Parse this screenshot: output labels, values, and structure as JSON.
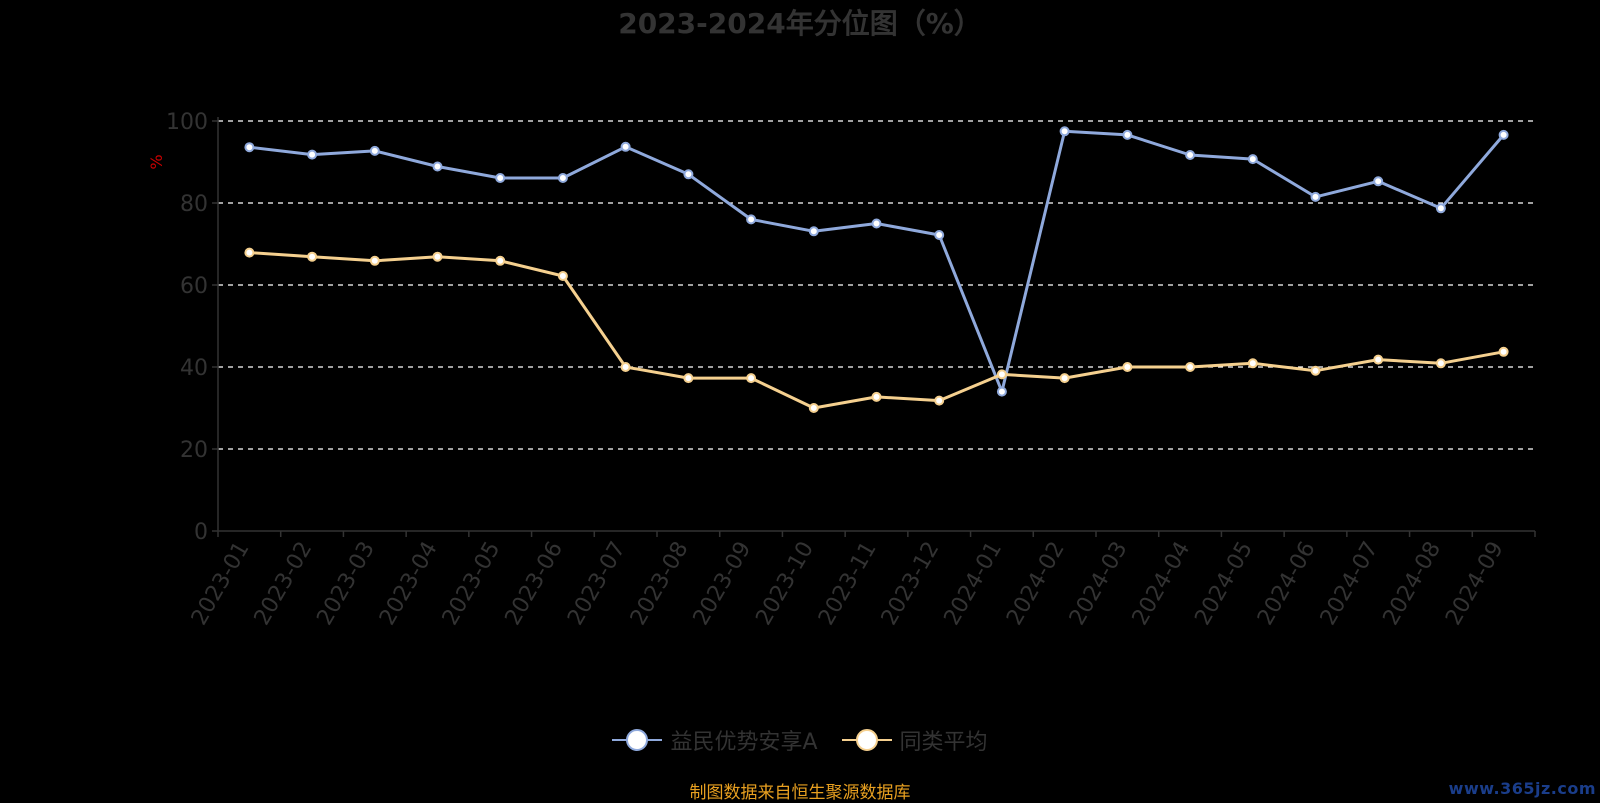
{
  "chart_data": {
    "type": "line",
    "title": "2023-2024年分位图（%）",
    "ylabel": "%",
    "ylim": [
      0,
      100
    ],
    "yticks": [
      0,
      20,
      40,
      60,
      80,
      100
    ],
    "grid": true,
    "legend_position": "bottom",
    "categories": [
      "2023-01",
      "2023-02",
      "2023-03",
      "2023-04",
      "2023-05",
      "2023-06",
      "2023-07",
      "2023-08",
      "2023-09",
      "2023-10",
      "2023-11",
      "2023-12",
      "2024-01",
      "2024-02",
      "2024-03",
      "2024-04",
      "2024-05",
      "2024-06",
      "2024-07",
      "2024-08",
      "2024-09"
    ],
    "series": [
      {
        "name": "益民优势安享A",
        "color": "#8fa9dc",
        "values": [
          93.6,
          91.8,
          92.7,
          88.9,
          86.1,
          86.1,
          93.7,
          87.0,
          76.0,
          73.1,
          75.0,
          72.2,
          34.0,
          97.5,
          96.6,
          91.7,
          90.7,
          81.5,
          85.3,
          78.7,
          96.6
        ]
      },
      {
        "name": "同类平均",
        "color": "#f5d08f",
        "values": [
          67.9,
          66.9,
          65.9,
          66.9,
          65.9,
          62.2,
          40.0,
          37.3,
          37.3,
          30.0,
          32.7,
          31.8,
          38.2,
          37.3,
          40.0,
          40.0,
          40.9,
          39.1,
          41.8,
          40.9,
          43.7
        ]
      }
    ]
  },
  "footer": {
    "source": "制图数据来自恒生聚源数据库",
    "watermark": "www.365jz.com"
  },
  "colors": {
    "background": "#000000",
    "axis": "#333333",
    "grid": "#ffffff",
    "ylabel": "#cc0000",
    "source": "#e8a020"
  }
}
